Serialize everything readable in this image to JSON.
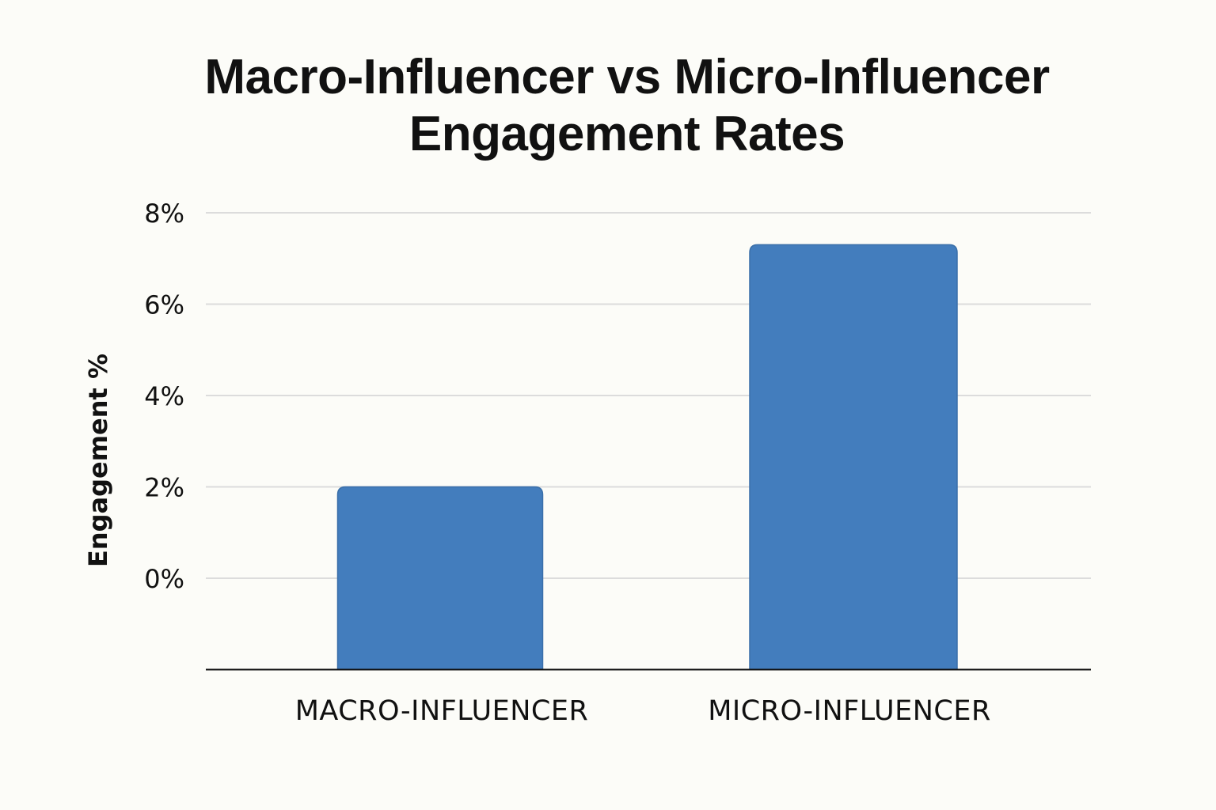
{
  "chart_data": {
    "type": "bar",
    "title_lines": [
      "Macro-Influencer vs Micro-Influencer",
      "Engagement Rates"
    ],
    "ylabel": "Engagement %",
    "xlabel": "",
    "categories": [
      "MACRO-INFLUENCER",
      "MICRO-INFLUENCER"
    ],
    "values": [
      2.0,
      7.3
    ],
    "y_ticks": [
      {
        "value": 0,
        "label": "0%"
      },
      {
        "value": 2,
        "label": "2%"
      },
      {
        "value": 4,
        "label": "4%"
      },
      {
        "value": 6,
        "label": "6%"
      },
      {
        "value": 8,
        "label": "8%"
      }
    ],
    "ylim": [
      -2,
      8
    ],
    "grid": true,
    "legend": "none",
    "colors": {
      "bar": "#437dbd",
      "bar_edge": "#3a6fa9",
      "grid": "#dcdcdc",
      "axis": "#111111",
      "background": "#fcfcf8"
    }
  }
}
